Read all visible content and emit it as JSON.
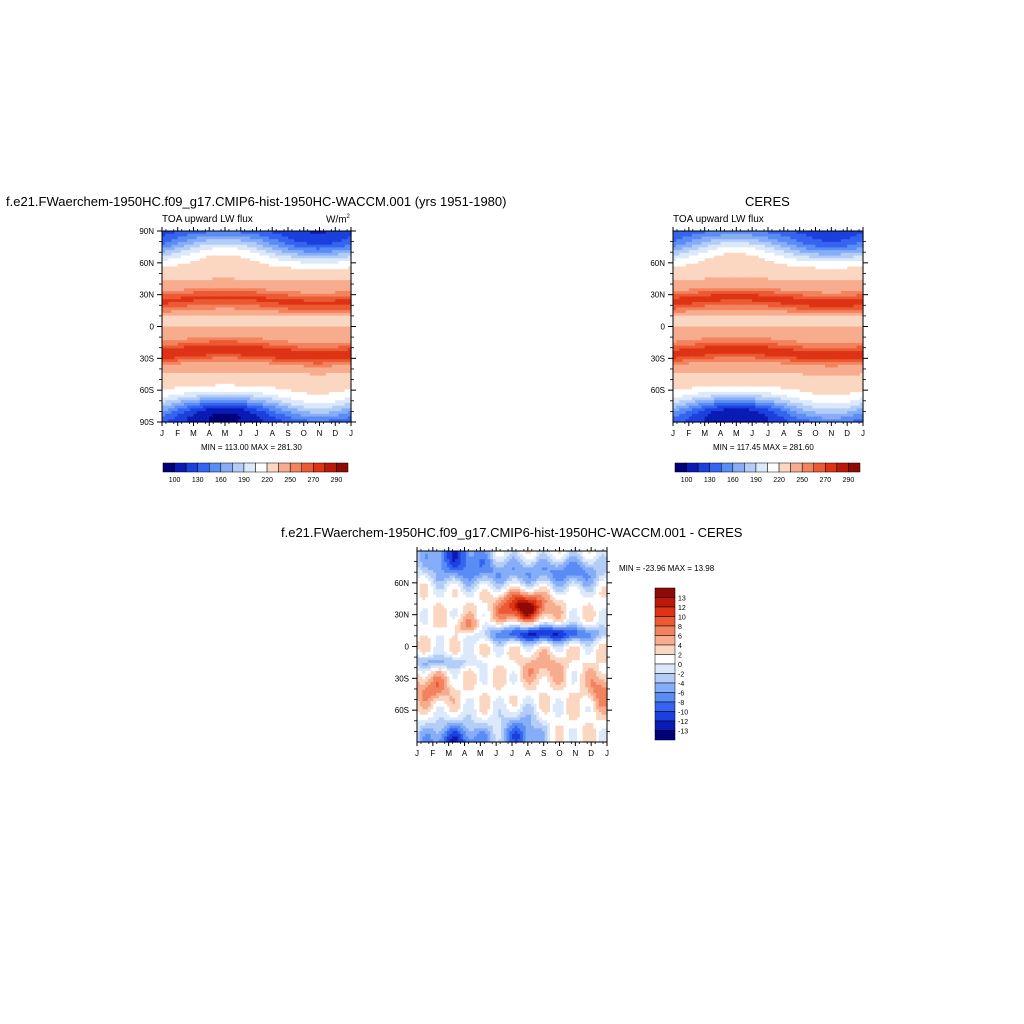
{
  "page": {
    "top_left_title": "f.e21.FWaerchem-1950HC.f09_g17.CMIP6-hist-1950HC-WACCM.001 (yrs 1951-1980)",
    "top_right_title": "CERES",
    "bottom_title": "f.e21.FWaerchem-1950HC.f09_g17.CMIP6-hist-1950HC-WACCM.001 - CERES"
  },
  "chart_data": [
    {
      "id": "model",
      "type": "heatmap",
      "title": "f.e21.FWaerchem-1950HC.f09_g17.CMIP6-hist-1950HC-WACCM.001 (yrs 1951-1980)",
      "subtitle": "TOA upward LW flux",
      "units": "W/m",
      "units_sup": "2",
      "x_ticks": [
        "J",
        "F",
        "M",
        "A",
        "M",
        "J",
        "J",
        "A",
        "S",
        "O",
        "N",
        "D",
        "J"
      ],
      "y_ticks": [
        "90N",
        "60N",
        "30N",
        "0",
        "30S",
        "60S",
        "90S"
      ],
      "ylim": [
        -90,
        90
      ],
      "minmax": "MIN = 113.00 MAX = 281.30",
      "colorbar_labels": [
        "100",
        "130",
        "160",
        "190",
        "220",
        "250",
        "270",
        "290"
      ],
      "palette": [
        "#00007a",
        "#0a1ab4",
        "#1c3fdf",
        "#3464f0",
        "#5a8cf5",
        "#86adf7",
        "#b3cdf7",
        "#dce9fa",
        "#ffffff",
        "#fbd7c2",
        "#f8ac8e",
        "#f3825f",
        "#eb5a33",
        "#de3314",
        "#bb1a08",
        "#8f0a04"
      ],
      "levels": [
        90,
        100,
        115,
        130,
        145,
        160,
        175,
        190,
        205,
        220,
        235,
        250,
        260,
        270,
        280,
        290,
        300
      ]
    },
    {
      "id": "obs",
      "type": "heatmap",
      "title": "CERES",
      "subtitle": "TOA upward LW flux",
      "x_ticks": [
        "J",
        "F",
        "M",
        "A",
        "M",
        "J",
        "J",
        "A",
        "S",
        "O",
        "N",
        "D",
        "J"
      ],
      "y_ticks": [
        "60N",
        "30N",
        "0",
        "30S",
        "60S"
      ],
      "ylim": [
        -90,
        90
      ],
      "minmax": "MIN = 117.45 MAX = 281.60",
      "colorbar_labels": [
        "100",
        "130",
        "160",
        "190",
        "220",
        "250",
        "270",
        "290"
      ],
      "palette": [
        "#00007a",
        "#0a1ab4",
        "#1c3fdf",
        "#3464f0",
        "#5a8cf5",
        "#86adf7",
        "#b3cdf7",
        "#dce9fa",
        "#ffffff",
        "#fbd7c2",
        "#f8ac8e",
        "#f3825f",
        "#eb5a33",
        "#de3314",
        "#bb1a08",
        "#8f0a04"
      ],
      "levels": [
        90,
        100,
        115,
        130,
        145,
        160,
        175,
        190,
        205,
        220,
        235,
        250,
        260,
        270,
        280,
        290,
        300
      ]
    },
    {
      "id": "diff",
      "type": "heatmap",
      "title": "f.e21.FWaerchem-1950HC.f09_g17.CMIP6-hist-1950HC-WACCM.001 - CERES",
      "x_ticks": [
        "J",
        "F",
        "M",
        "A",
        "M",
        "J",
        "J",
        "A",
        "S",
        "O",
        "N",
        "D",
        "J"
      ],
      "y_ticks": [
        "60N",
        "30N",
        "0",
        "30S",
        "60S"
      ],
      "ylim": [
        -90,
        90
      ],
      "minmax": "MIN = -23.96 MAX =  13.98",
      "colorbar_labels": [
        "13",
        "12",
        "10",
        "8",
        "6",
        "4",
        "2",
        "0",
        "-2",
        "-4",
        "-6",
        "-8",
        "-10",
        "-12",
        "-13"
      ],
      "palette": [
        "#00007a",
        "#0a1ab4",
        "#1c3fdf",
        "#3464f0",
        "#5a8cf5",
        "#86adf7",
        "#b3cdf7",
        "#dce9fa",
        "#ffffff",
        "#fbd7c2",
        "#f8ac8e",
        "#f3825f",
        "#eb5a33",
        "#de3314",
        "#bb1a08",
        "#8f0a04"
      ],
      "levels": [
        -99,
        -13,
        -12,
        -10,
        -8,
        -6,
        -4,
        -2,
        0,
        2,
        4,
        6,
        8,
        10,
        12,
        13,
        99
      ]
    }
  ]
}
